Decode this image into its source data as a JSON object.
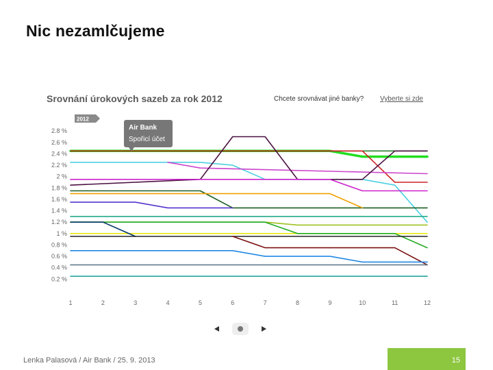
{
  "slide": {
    "title": "Nic nezamlčujeme",
    "footer": "Lenka Palasová / Air Bank / 25. 9. 2013",
    "page_number": "15",
    "accent_color": "#8dc63f"
  },
  "widget": {
    "title": "Srovnání úrokových sazeb za rok 2012",
    "question": "Chcete srovnávat jiné banky?",
    "link": "Vyberte si zde",
    "year_tab": "2012",
    "tooltip": {
      "line1": "Air Bank",
      "line2": "Spořicí účet"
    },
    "pager_prev_icon": "triangle-left-icon",
    "pager_dot_icon": "pager-dot-icon",
    "pager_next_icon": "triangle-right-icon"
  },
  "chart_data": {
    "type": "line",
    "title": "Srovnání úrokových sazeb za rok 2012",
    "x": [
      1,
      2,
      3,
      4,
      5,
      6,
      7,
      8,
      9,
      10,
      11,
      12
    ],
    "x_tick_labels": [
      "1",
      "2",
      "3",
      "4",
      "5",
      "6",
      "7",
      "8",
      "9",
      "10",
      "11",
      "12"
    ],
    "y_tick_values": [
      2.8,
      2.6,
      2.4,
      2.2,
      2.0,
      1.8,
      1.6,
      1.4,
      1.2,
      1.0,
      0.8,
      0.6,
      0.4,
      0.2
    ],
    "y_tick_labels": [
      "2.8 %",
      "2.6 %",
      "2.4 %",
      "2.2 %",
      "2 %",
      "1.8 %",
      "1.6 %",
      "1.4 %",
      "1.2 %",
      "1 %",
      "0.8 %",
      "0.6 %",
      "0.4 %",
      "0.2 %"
    ],
    "ylim": [
      0.0,
      2.85
    ],
    "xlim": [
      1,
      12
    ],
    "grid": false,
    "series": [
      {
        "color": "#22dd22",
        "highlighted": true,
        "points": [
          [
            1,
            2.45
          ],
          [
            9,
            2.45
          ],
          [
            10,
            2.35
          ],
          [
            12,
            2.35
          ]
        ]
      },
      {
        "color": "#2e7d32",
        "points": [
          [
            1,
            2.45
          ],
          [
            12,
            2.45
          ]
        ]
      },
      {
        "color": "#cc2222",
        "points": [
          [
            1,
            2.45
          ],
          [
            10,
            2.45
          ],
          [
            11,
            1.9
          ],
          [
            12,
            1.9
          ]
        ]
      },
      {
        "color": "#4dd0e1",
        "points": [
          [
            1,
            2.25
          ],
          [
            5,
            2.25
          ],
          [
            6,
            2.2
          ],
          [
            7,
            1.95
          ],
          [
            10,
            1.95
          ],
          [
            11,
            1.85
          ],
          [
            12,
            1.2
          ]
        ]
      },
      {
        "color": "#cc44cc",
        "points": [
          [
            4,
            2.25
          ],
          [
            5,
            2.15
          ],
          [
            12,
            2.05
          ]
        ]
      },
      {
        "color": "#4a1040",
        "points": [
          [
            1,
            1.85
          ],
          [
            5,
            1.95
          ],
          [
            6,
            2.7
          ],
          [
            7,
            2.7
          ],
          [
            8,
            1.95
          ],
          [
            10,
            1.95
          ],
          [
            11,
            2.45
          ],
          [
            12,
            2.45
          ]
        ]
      },
      {
        "color": "#cc22cc",
        "points": [
          [
            1,
            1.95
          ],
          [
            9,
            1.95
          ],
          [
            10,
            1.75
          ],
          [
            12,
            1.75
          ]
        ]
      },
      {
        "color": "#1b5e20",
        "points": [
          [
            1,
            1.75
          ],
          [
            5,
            1.75
          ],
          [
            6,
            1.45
          ],
          [
            12,
            1.45
          ]
        ]
      },
      {
        "color": "#f0a000",
        "points": [
          [
            1,
            1.7
          ],
          [
            9,
            1.7
          ],
          [
            10,
            1.45
          ]
        ]
      },
      {
        "color": "#5533cc",
        "points": [
          [
            1,
            1.55
          ],
          [
            3,
            1.55
          ],
          [
            4,
            1.45
          ],
          [
            6,
            1.45
          ]
        ]
      },
      {
        "color": "#22aa88",
        "points": [
          [
            1,
            1.3
          ],
          [
            12,
            1.3
          ]
        ]
      },
      {
        "color": "#a0c020",
        "points": [
          [
            1,
            1.2
          ],
          [
            7,
            1.2
          ],
          [
            8,
            1.15
          ],
          [
            12,
            1.15
          ]
        ]
      },
      {
        "color": "#e8e810",
        "points": [
          [
            1,
            1.0
          ],
          [
            12,
            1.0
          ]
        ]
      },
      {
        "color": "#22aa22",
        "points": [
          [
            1,
            1.2
          ],
          [
            7,
            1.2
          ],
          [
            8,
            1.0
          ],
          [
            11,
            1.0
          ],
          [
            12,
            0.75
          ]
        ]
      },
      {
        "color": "#003366",
        "points": [
          [
            1,
            1.2
          ],
          [
            2,
            1.2
          ],
          [
            3,
            0.95
          ]
        ]
      },
      {
        "color": "#222222",
        "points": [
          [
            1,
            0.95
          ],
          [
            12,
            0.95
          ]
        ]
      },
      {
        "color": "#7a1010",
        "points": [
          [
            6,
            0.95
          ],
          [
            7,
            0.75
          ],
          [
            11,
            0.75
          ],
          [
            12,
            0.45
          ]
        ]
      },
      {
        "color": "#1e88e5",
        "points": [
          [
            1,
            0.7
          ],
          [
            6,
            0.7
          ],
          [
            7,
            0.6
          ],
          [
            9,
            0.6
          ],
          [
            10,
            0.5
          ],
          [
            12,
            0.5
          ]
        ]
      },
      {
        "color": "#607d8b",
        "points": [
          [
            1,
            0.45
          ],
          [
            12,
            0.45
          ]
        ]
      },
      {
        "color": "#26a69a",
        "points": [
          [
            1,
            0.25
          ],
          [
            12,
            0.25
          ]
        ]
      }
    ]
  }
}
